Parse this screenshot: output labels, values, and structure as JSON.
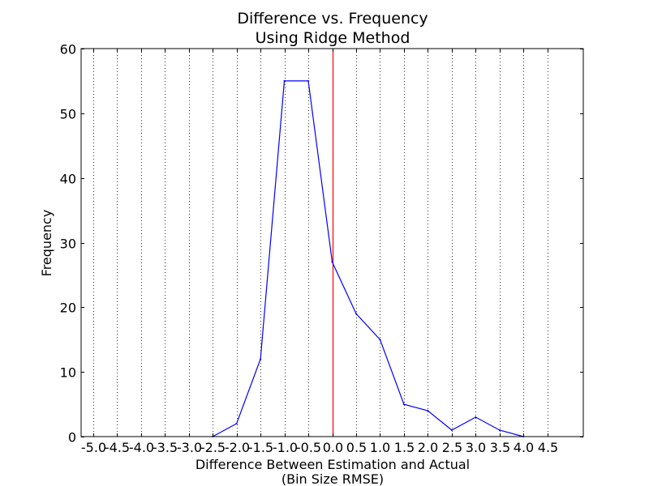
{
  "chart_data": {
    "type": "line",
    "title": "Difference vs. Frequency",
    "subtitle": "Using Ridge Method",
    "xlabel": "Difference Between Estimation and Actual",
    "xlabel_line2": "(Bin Size RMSE)",
    "ylabel": "Frequency",
    "xlim": [
      -5.25,
      5.25
    ],
    "ylim": [
      0,
      60
    ],
    "grid": "vertical dotted",
    "x_ticks": [
      "-5.0",
      "-4.5",
      "-4.0",
      "-3.5",
      "-3.0",
      "-2.5",
      "-2.0",
      "-1.5",
      "-1.0",
      "-0.5",
      "0.0",
      "0.5",
      "1.0",
      "1.5",
      "2.0",
      "2.5",
      "3.0",
      "3.5",
      "4.0",
      "4.5"
    ],
    "y_ticks": [
      "0",
      "10",
      "20",
      "30",
      "40",
      "50",
      "60"
    ],
    "series": [
      {
        "color": "#0000ff",
        "x": [
          -2.5,
          -2.0,
          -1.5,
          -1.0,
          -0.5,
          0.0,
          0.5,
          1.0,
          1.5,
          2.0,
          2.5,
          3.0,
          3.5,
          4.0
        ],
        "values": [
          0,
          2,
          12,
          55,
          55,
          27,
          19,
          15,
          5,
          4,
          1,
          3,
          1,
          0
        ]
      }
    ],
    "reference_line": {
      "x": 0.0,
      "color": "#ff0000"
    }
  }
}
